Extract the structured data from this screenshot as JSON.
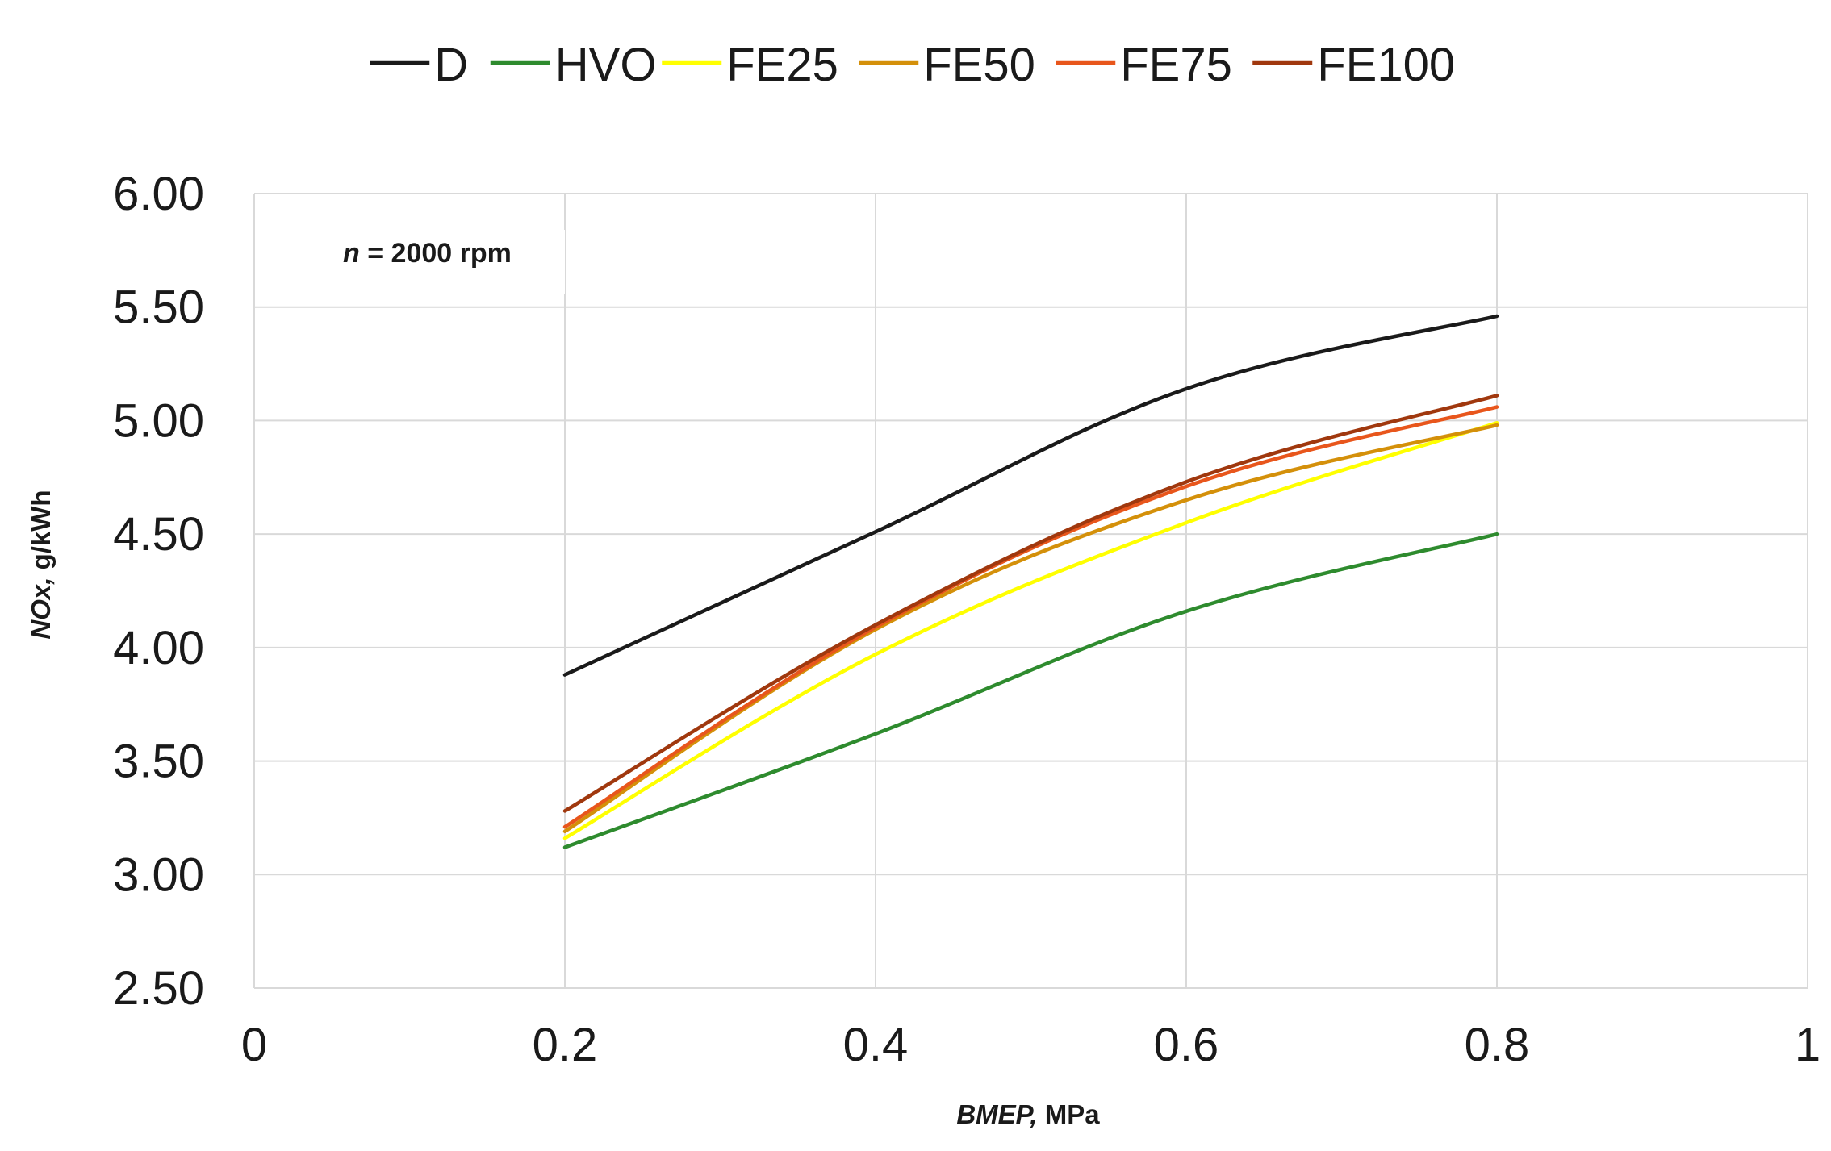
{
  "chart_data": {
    "type": "line",
    "title": "",
    "xlabel_italic": "BMEP,",
    "xlabel_rest": " MPa",
    "ylabel_italic": "NOx,",
    "ylabel_rest": " g/kWh",
    "xlim": [
      0,
      1
    ],
    "ylim": [
      2.5,
      6.0
    ],
    "x_ticks": [
      0,
      0.2,
      0.4,
      0.6,
      0.8,
      1
    ],
    "x_tick_labels": [
      "0",
      "0.2",
      "0.4",
      "0.6",
      "0.8",
      "1"
    ],
    "y_ticks": [
      2.5,
      3.0,
      3.5,
      4.0,
      4.5,
      5.0,
      5.5,
      6.0
    ],
    "y_tick_labels": [
      "2.50",
      "3.00",
      "3.50",
      "4.00",
      "4.50",
      "5.00",
      "5.50",
      "6.00"
    ],
    "grid": true,
    "legend_position": "top",
    "annotation": {
      "italic": "n",
      "rest": " = 2000 rpm"
    },
    "x": [
      0.2,
      0.4,
      0.6,
      0.8
    ],
    "series": [
      {
        "name": "D",
        "color": "#1a1a1a",
        "values": [
          3.88,
          4.51,
          5.14,
          5.46
        ]
      },
      {
        "name": "HVO",
        "color": "#2e8b2e",
        "values": [
          3.12,
          3.62,
          4.16,
          4.5
        ]
      },
      {
        "name": "FE25",
        "color": "#ffff00",
        "values": [
          3.16,
          3.97,
          4.55,
          4.99
        ]
      },
      {
        "name": "FE50",
        "color": "#d4900a",
        "values": [
          3.19,
          4.08,
          4.65,
          4.98
        ]
      },
      {
        "name": "FE75",
        "color": "#e8561c",
        "values": [
          3.21,
          4.09,
          4.71,
          5.06
        ]
      },
      {
        "name": "FE100",
        "color": "#a0380e",
        "values": [
          3.28,
          4.1,
          4.73,
          5.11
        ]
      }
    ]
  }
}
